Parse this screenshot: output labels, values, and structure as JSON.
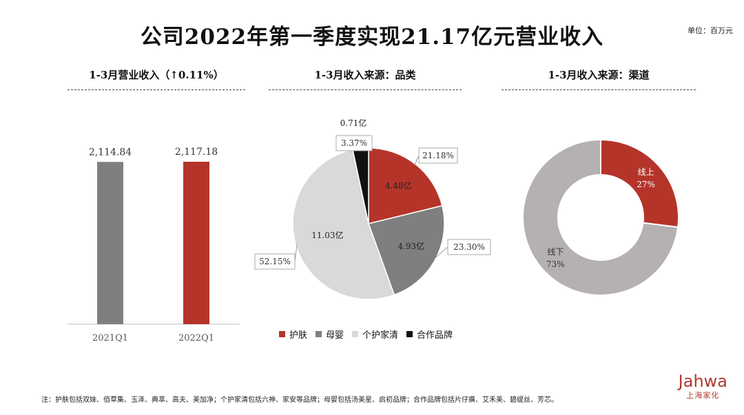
{
  "title": "公司2022年第一季度实现21.17亿元营业收入",
  "unit": "单位：百万元",
  "panels": {
    "revenue_title": "1-3月营业收入（↑0.11%）",
    "category_title": "1-3月收入来源：品类",
    "channel_title": "1-3月收入来源：渠道"
  },
  "footnote": "注：护肤包括双妹、佰草集、玉泽、典萃、高夫、美加净；个护家清包括六神、家安等品牌；母婴包括汤美星、启初品牌；合作品牌包括片仔癀、艾禾美、碧缇丝、芳芯。",
  "logo": {
    "word": "Jahwa",
    "sub": "上海家化"
  },
  "colors": {
    "red": "#b5342a",
    "gray": "#7f7f7f",
    "light": "#d9d9d9",
    "black": "#111111",
    "donut_gray": "#b5b0b1"
  },
  "chart_data": [
    {
      "type": "bar",
      "categories": [
        "2021Q1",
        "2022Q1"
      ],
      "values": [
        2114.84,
        2117.18
      ],
      "value_labels": [
        "2,114.84",
        "2,117.18"
      ],
      "colors": [
        "#7f7f7f",
        "#b5342a"
      ]
    },
    {
      "type": "pie",
      "slices": [
        {
          "name": "护肤",
          "value": 4.48,
          "label": "4.48亿",
          "percent": 21.18,
          "percent_label": "21.18%",
          "color": "#b5342a"
        },
        {
          "name": "母婴",
          "value": 4.93,
          "label": "4.93亿",
          "percent": 23.3,
          "percent_label": "23.30%",
          "color": "#7f7f7f"
        },
        {
          "name": "个护家清",
          "value": 11.03,
          "label": "11.03亿",
          "percent": 52.15,
          "percent_label": "52.15%",
          "color": "#d9d9d9"
        },
        {
          "name": "合作品牌",
          "value": 0.71,
          "label": "0.71亿",
          "percent": 3.37,
          "percent_label": "3.37%",
          "color": "#111111"
        }
      ],
      "legend": [
        "护肤",
        "母婴",
        "个护家清",
        "合作品牌"
      ],
      "legend_position": "bottom"
    },
    {
      "type": "pie",
      "donut": true,
      "slices": [
        {
          "name": "线上",
          "value": 27,
          "percent_label": "27%",
          "color": "#b5342a"
        },
        {
          "name": "线下",
          "value": 73,
          "percent_label": "73%",
          "color": "#b5b0b1"
        }
      ]
    }
  ]
}
